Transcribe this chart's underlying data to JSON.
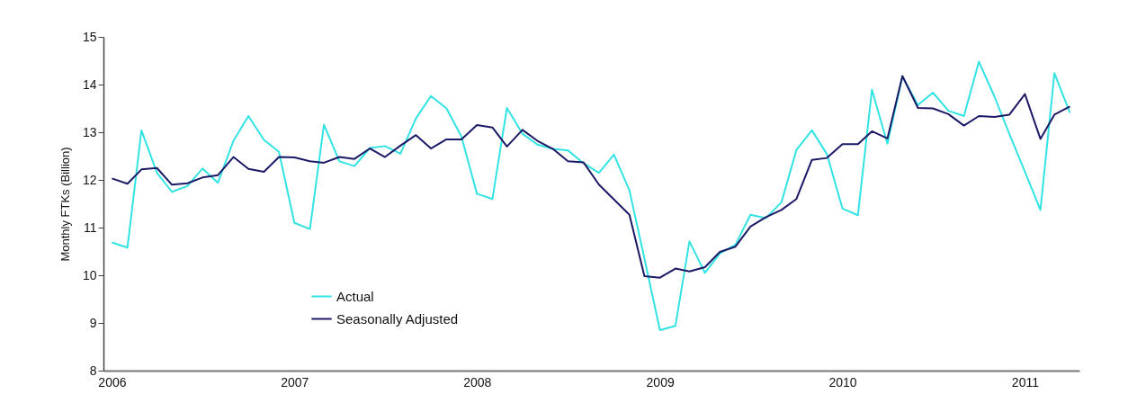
{
  "chart_data": {
    "type": "line",
    "ylabel": "Monthly FTKs (Billion)",
    "x": [
      "2006-01",
      "2006-02",
      "2006-03",
      "2006-04",
      "2006-05",
      "2006-06",
      "2006-07",
      "2006-08",
      "2006-09",
      "2006-10",
      "2006-11",
      "2006-12",
      "2007-01",
      "2007-02",
      "2007-03",
      "2007-04",
      "2007-05",
      "2007-06",
      "2007-07",
      "2007-08",
      "2007-09",
      "2007-10",
      "2007-11",
      "2007-12",
      "2008-01",
      "2008-02",
      "2008-03",
      "2008-04",
      "2008-05",
      "2008-06",
      "2008-07",
      "2008-08",
      "2008-09",
      "2008-10",
      "2008-11",
      "2008-12",
      "2009-01",
      "2009-02",
      "2009-03",
      "2009-04",
      "2009-05",
      "2009-06",
      "2009-07",
      "2009-08",
      "2009-09",
      "2009-10",
      "2009-11",
      "2009-12",
      "2010-01",
      "2010-02",
      "2010-03",
      "2010-04",
      "2010-05",
      "2010-06",
      "2010-07",
      "2010-08",
      "2010-09",
      "2010-10",
      "2010-11",
      "2010-12",
      "2011-01",
      "2011-02",
      "2011-03",
      "2011-04"
    ],
    "series": [
      {
        "name": "Actual",
        "color": "#33e3e3",
        "values": [
          10.69,
          10.58,
          13.04,
          12.15,
          11.75,
          11.87,
          12.24,
          11.94,
          12.82,
          13.34,
          12.84,
          12.59,
          11.1,
          10.97,
          13.16,
          12.39,
          12.29,
          12.67,
          12.71,
          12.55,
          13.29,
          13.76,
          13.5,
          12.91,
          11.71,
          11.6,
          13.51,
          12.97,
          12.74,
          12.65,
          12.62,
          12.35,
          12.15,
          12.53,
          11.78,
          10.35,
          8.85,
          8.94,
          10.71,
          10.05,
          10.46,
          10.64,
          11.27,
          11.2,
          11.53,
          12.63,
          13.04,
          12.54,
          11.4,
          11.26,
          13.89,
          12.76,
          14.17,
          13.57,
          13.83,
          13.45,
          13.34,
          14.48,
          13.75,
          12.96,
          12.17,
          11.37,
          14.24,
          13.41
        ]
      },
      {
        "name": "Seasonally Adjusted",
        "color": "#1c1a66",
        "values": [
          12.03,
          11.92,
          12.22,
          12.25,
          11.9,
          11.93,
          12.05,
          12.1,
          12.48,
          12.23,
          12.17,
          12.48,
          12.47,
          12.39,
          12.36,
          12.48,
          12.44,
          12.66,
          12.48,
          12.72,
          12.94,
          12.66,
          12.85,
          12.85,
          13.15,
          13.1,
          12.7,
          13.05,
          12.82,
          12.65,
          12.39,
          12.37,
          11.9,
          11.59,
          11.27,
          9.98,
          9.95,
          10.14,
          10.08,
          10.17,
          10.49,
          10.6,
          11.02,
          11.22,
          11.37,
          11.6,
          12.42,
          12.46,
          12.75,
          12.75,
          13.02,
          12.87,
          14.18,
          13.51,
          13.5,
          13.38,
          13.14,
          13.34,
          13.32,
          13.37,
          13.8,
          12.86,
          13.37,
          13.54
        ]
      }
    ],
    "xlim": [
      "2005-12-15",
      "2011-04-20"
    ],
    "xticks": [
      {
        "value": "2006-01",
        "label": "2006"
      },
      {
        "value": "2007-01",
        "label": "2007"
      },
      {
        "value": "2008-01",
        "label": "2008"
      },
      {
        "value": "2009-01",
        "label": "2009"
      },
      {
        "value": "2010-01",
        "label": "2010"
      },
      {
        "value": "2011-01",
        "label": "2011"
      }
    ],
    "ylim": [
      8,
      15
    ],
    "yticks": [
      8,
      9,
      10,
      11,
      12,
      13,
      14,
      15
    ],
    "grid": false,
    "legend": "bottom left",
    "marker": "none",
    "line_style": "solid"
  }
}
